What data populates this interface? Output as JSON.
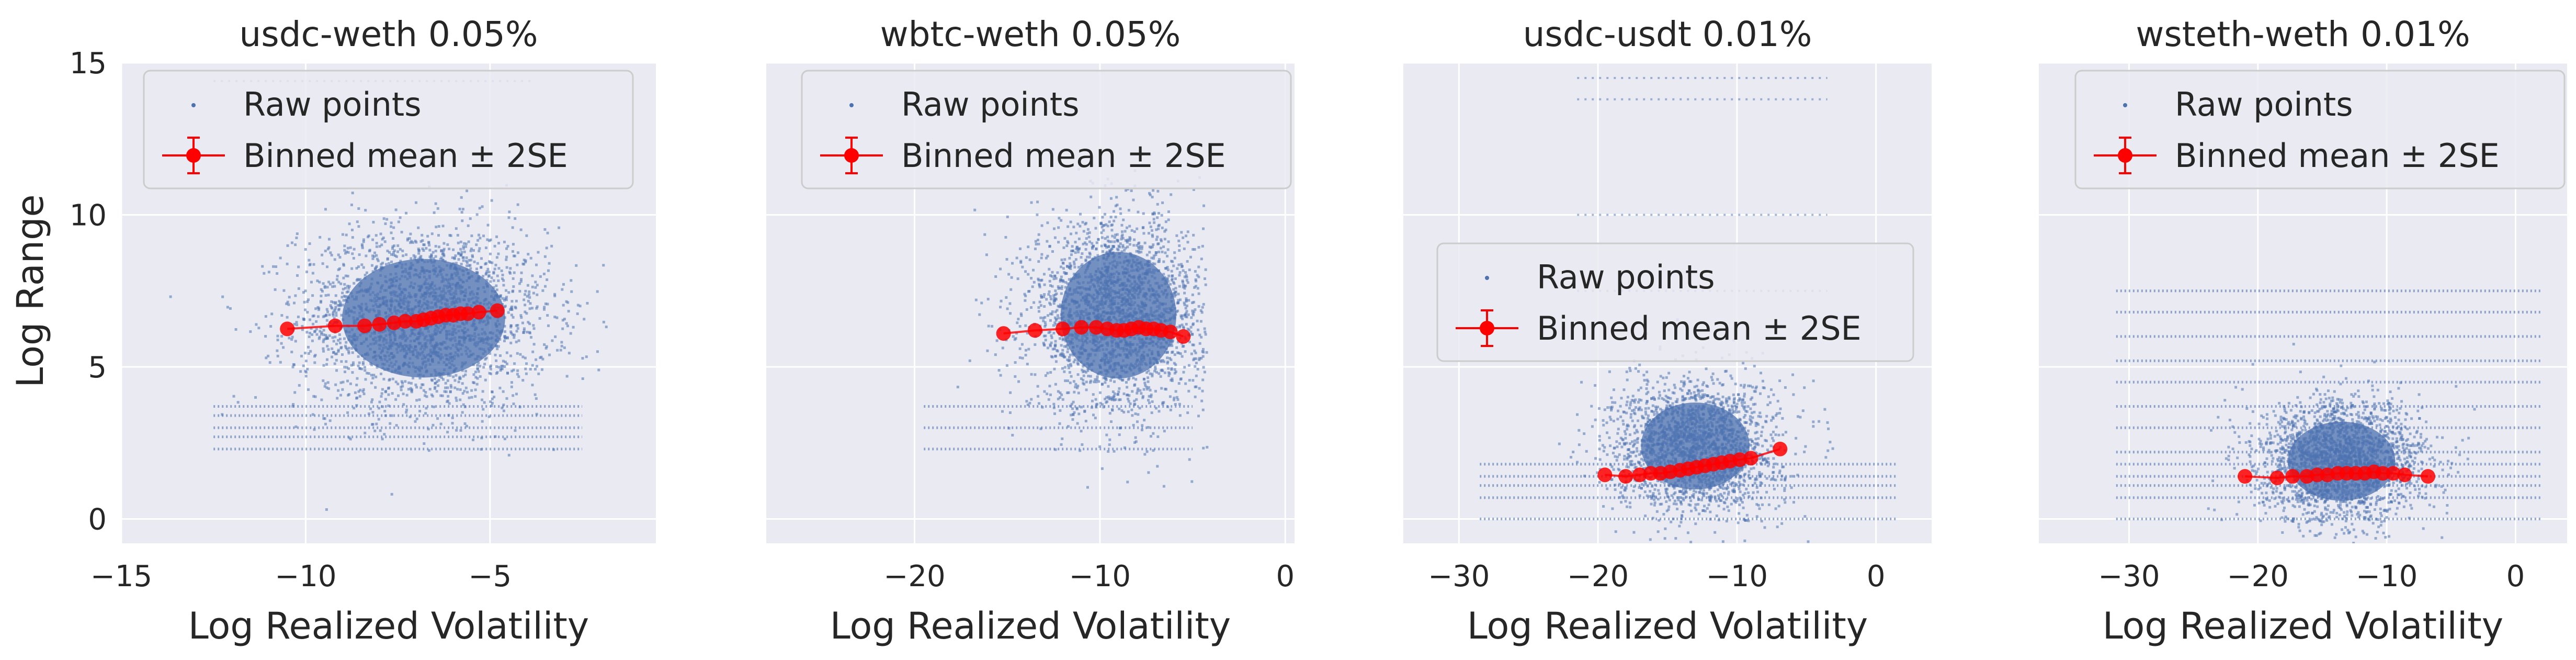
{
  "figure": {
    "shared_ylabel": "Log Range",
    "colors": {
      "panel_bg": "#eaeaf2",
      "grid": "#ffffff",
      "raw": "#4c72b0",
      "binned": "#ff0000",
      "legend_bg": "#eaeaf2",
      "legend_border": "#cccccc"
    }
  },
  "chart_data": [
    {
      "type": "scatter",
      "title": "usdc-weth 0.05%",
      "xlabel": "Log Realized Volatility",
      "ylabel": "Log Range",
      "xlim": [
        -15,
        -0.5
      ],
      "ylim": [
        -0.8,
        15
      ],
      "xticks": [
        -15,
        -10,
        -5
      ],
      "yticks": [
        0,
        5,
        10,
        15
      ],
      "legend": {
        "raw_label": "Raw points",
        "binned_label": "Binned mean ± 2SE",
        "placement": "upper-left"
      },
      "raw_cloud": {
        "cx": -6.8,
        "cy": 6.6,
        "sx": 1.7,
        "sy": 1.5,
        "n": 2600,
        "x_range": [
          -14.5,
          -1.8
        ],
        "y_levels": [
          2.3,
          2.7,
          3.0,
          3.4,
          3.7
        ],
        "y_levels_x_range": [
          -12.5,
          -2.5
        ],
        "sparse_top": [
          14.4
        ]
      },
      "binned_mean": {
        "x": [
          -10.5,
          -9.2,
          -8.4,
          -8.0,
          -7.6,
          -7.3,
          -7.0,
          -6.8,
          -6.6,
          -6.4,
          -6.2,
          -6.0,
          -5.8,
          -5.6,
          -5.3,
          -4.8
        ],
        "y": [
          6.25,
          6.35,
          6.35,
          6.4,
          6.45,
          6.5,
          6.5,
          6.55,
          6.6,
          6.65,
          6.7,
          6.7,
          6.75,
          6.75,
          6.8,
          6.85
        ]
      }
    },
    {
      "type": "scatter",
      "title": "wbtc-weth 0.05%",
      "xlabel": "Log Realized Volatility",
      "ylabel": "",
      "xlim": [
        -28,
        0.5
      ],
      "ylim": [
        -0.8,
        15
      ],
      "xticks": [
        -20,
        -10,
        0
      ],
      "yticks": [
        0,
        5,
        10,
        15
      ],
      "legend": {
        "raw_label": "Raw points",
        "binned_label": "Binned mean ± 2SE",
        "placement": "upper-left"
      },
      "raw_cloud": {
        "cx": -9.0,
        "cy": 6.7,
        "sx": 2.4,
        "sy": 1.6,
        "n": 2600,
        "x_range": [
          -27,
          -4.2
        ],
        "y_levels": [
          2.3,
          3.0,
          3.7
        ],
        "y_levels_x_range": [
          -19.5,
          -5
        ],
        "sparse_top": []
      },
      "binned_mean": {
        "x": [
          -15.2,
          -13.5,
          -12.0,
          -11.0,
          -10.2,
          -9.6,
          -9.1,
          -8.7,
          -8.3,
          -7.9,
          -7.5,
          -7.1,
          -6.7,
          -6.2,
          -5.5
        ],
        "y": [
          6.1,
          6.2,
          6.25,
          6.3,
          6.3,
          6.25,
          6.2,
          6.2,
          6.25,
          6.3,
          6.25,
          6.25,
          6.2,
          6.15,
          6.0
        ]
      }
    },
    {
      "type": "scatter",
      "title": "usdc-usdt 0.01%",
      "xlabel": "Log Realized Volatility",
      "ylabel": "",
      "xlim": [
        -34,
        4
      ],
      "ylim": [
        -0.8,
        15
      ],
      "xticks": [
        -30,
        -20,
        -10,
        0
      ],
      "yticks": [
        0,
        5,
        10,
        15
      ],
      "legend": {
        "raw_label": "Raw points",
        "binned_label": "Binned mean ± 2SE",
        "placement": "center-right"
      },
      "raw_cloud": {
        "cx": -13.0,
        "cy": 2.4,
        "sx": 3.0,
        "sy": 1.1,
        "n": 2200,
        "x_range": [
          -23.5,
          -1.5
        ],
        "y_levels": [
          0.0,
          0.7,
          1.1,
          1.4,
          1.8
        ],
        "y_levels_x_range": [
          -28.5,
          1.5
        ],
        "sparse_top": [
          14.5,
          13.8,
          10.0,
          7.5
        ]
      },
      "binned_mean": {
        "x": [
          -19.5,
          -18.0,
          -17.0,
          -16.2,
          -15.5,
          -14.8,
          -14.1,
          -13.5,
          -12.9,
          -12.3,
          -11.7,
          -11.1,
          -10.5,
          -9.8,
          -9.0,
          -6.9
        ],
        "y": [
          1.45,
          1.4,
          1.45,
          1.5,
          1.5,
          1.55,
          1.6,
          1.65,
          1.7,
          1.75,
          1.8,
          1.85,
          1.9,
          1.95,
          2.0,
          2.3
        ]
      }
    },
    {
      "type": "scatter",
      "title": "wsteth-weth 0.01%",
      "xlabel": "Log Realized Volatility",
      "ylabel": "",
      "xlim": [
        -37,
        4
      ],
      "ylim": [
        -0.8,
        15
      ],
      "xticks": [
        -30,
        -20,
        -10,
        0
      ],
      "yticks": [
        0,
        5,
        10,
        15
      ],
      "legend": {
        "raw_label": "Raw points",
        "binned_label": "Binned mean ± 2SE",
        "placement": "upper-left"
      },
      "raw_cloud": {
        "cx": -13.5,
        "cy": 1.9,
        "sx": 3.2,
        "sy": 1.0,
        "n": 2200,
        "x_range": [
          -27,
          0
        ],
        "y_levels": [
          0.0,
          0.7,
          1.1,
          1.4,
          1.8,
          2.2,
          3.0,
          3.7,
          4.5,
          5.2,
          6.0,
          6.8,
          7.5
        ],
        "y_levels_x_range": [
          -31,
          2
        ],
        "sparse_top": []
      },
      "binned_mean": {
        "x": [
          -21.0,
          -18.5,
          -17.3,
          -16.2,
          -15.4,
          -14.6,
          -13.8,
          -13.1,
          -12.4,
          -11.7,
          -11.0,
          -10.3,
          -9.5,
          -8.6,
          -6.8
        ],
        "y": [
          1.4,
          1.35,
          1.4,
          1.4,
          1.45,
          1.45,
          1.5,
          1.5,
          1.5,
          1.5,
          1.55,
          1.5,
          1.5,
          1.45,
          1.4
        ]
      }
    }
  ]
}
